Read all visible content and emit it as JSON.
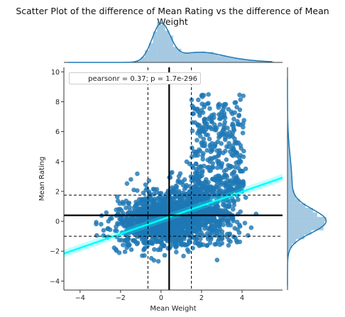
{
  "chart_data": {
    "type": "scatter",
    "title": "Scatter Plot of the difference of Mean Rating vs the difference of Mean Weight",
    "xlabel": "Mean Weight",
    "ylabel": "Mean Rating",
    "xlim": [
      -4.8,
      6.0
    ],
    "ylim": [
      -4.6,
      10.3
    ],
    "x_ticks": [
      -4,
      -2,
      0,
      2,
      4
    ],
    "y_ticks": [
      -4,
      -2,
      0,
      2,
      4,
      6,
      8,
      10
    ],
    "annotation": "pearsonr = 0.37; p = 1.7e-296",
    "legend_position": "top-left",
    "point_color": "#1f77b4",
    "regression_color": "#00ffff",
    "regression_line": {
      "slope": 0.47,
      "intercept": 0.1
    },
    "mean_lines": {
      "x": 0.4,
      "y": 0.4
    },
    "quantile_lines": {
      "x": [
        -0.65,
        1.5
      ],
      "y": [
        -1.0,
        1.75
      ]
    },
    "marginal_x": {
      "type": "hist+kde",
      "peak": 0.0
    },
    "marginal_y": {
      "type": "hist+kde",
      "peak": 0.0
    }
  }
}
